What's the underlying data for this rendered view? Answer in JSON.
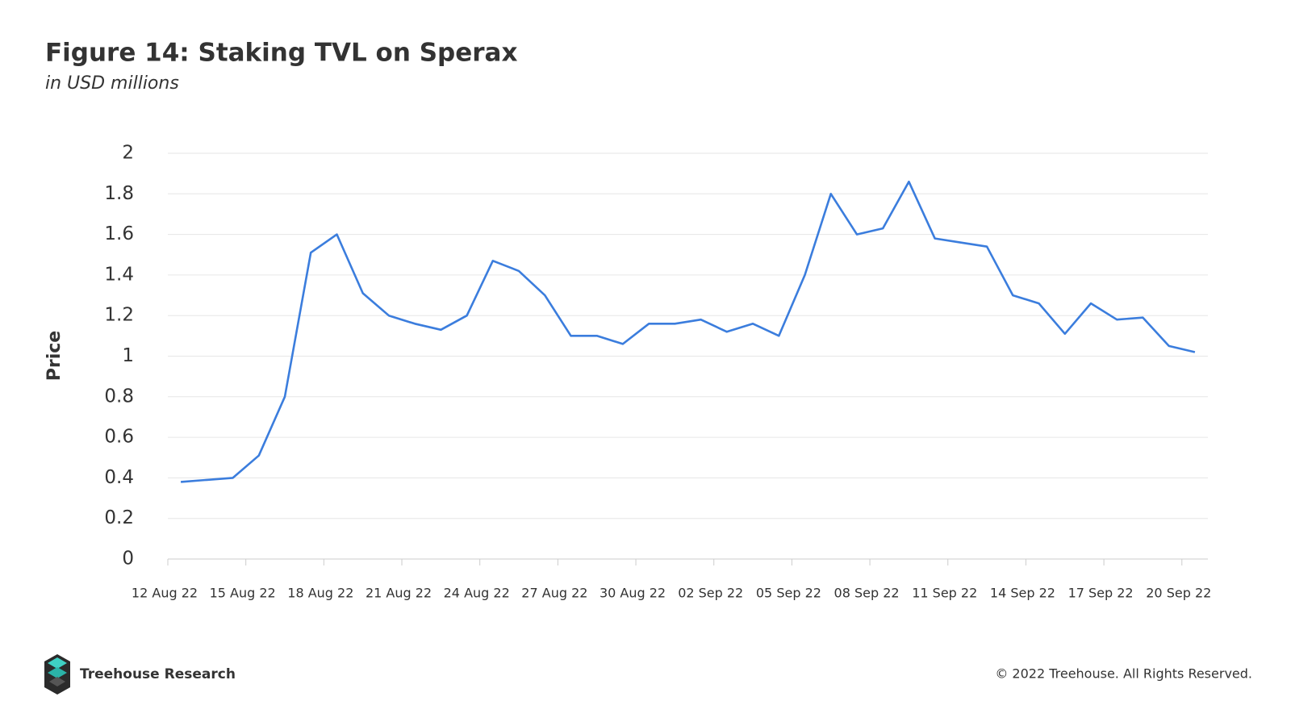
{
  "chart_data": {
    "type": "line",
    "title": "Figure 14: Staking TVL on Sperax",
    "subtitle": "in USD millions",
    "y_label": "Price",
    "x": [
      "2022-08-12",
      "2022-08-13",
      "2022-08-14",
      "2022-08-15",
      "2022-08-16",
      "2022-08-17",
      "2022-08-18",
      "2022-08-19",
      "2022-08-20",
      "2022-08-21",
      "2022-08-22",
      "2022-08-23",
      "2022-08-24",
      "2022-08-25",
      "2022-08-26",
      "2022-08-27",
      "2022-08-28",
      "2022-08-29",
      "2022-08-30",
      "2022-08-31",
      "2022-09-01",
      "2022-09-02",
      "2022-09-03",
      "2022-09-04",
      "2022-09-05",
      "2022-09-06",
      "2022-09-07",
      "2022-09-08",
      "2022-09-09",
      "2022-09-10",
      "2022-09-11",
      "2022-09-12",
      "2022-09-13",
      "2022-09-14",
      "2022-09-15",
      "2022-09-16",
      "2022-09-17",
      "2022-09-18",
      "2022-09-19",
      "2022-09-20"
    ],
    "series": [
      {
        "name": "Staking TVL",
        "color": "#3b7ddd",
        "values": [
          0.38,
          0.39,
          0.4,
          0.51,
          0.8,
          1.51,
          1.6,
          1.31,
          1.2,
          1.16,
          1.13,
          1.2,
          1.47,
          1.42,
          1.3,
          1.1,
          1.1,
          1.06,
          1.16,
          1.16,
          1.18,
          1.12,
          1.16,
          1.1,
          1.4,
          1.8,
          1.6,
          1.63,
          1.86,
          1.58,
          1.56,
          1.54,
          1.3,
          1.26,
          1.11,
          1.26,
          1.18,
          1.19,
          1.05,
          1.02
        ]
      }
    ],
    "xlim": [
      "2022-08-12",
      "2022-09-21"
    ],
    "xticks": [
      {
        "value": "2022-08-12",
        "label": "12 Aug 22"
      },
      {
        "value": "2022-08-15",
        "label": "15 Aug 22"
      },
      {
        "value": "2022-08-18",
        "label": "18 Aug 22"
      },
      {
        "value": "2022-08-21",
        "label": "21 Aug 22"
      },
      {
        "value": "2022-08-24",
        "label": "24 Aug 22"
      },
      {
        "value": "2022-08-27",
        "label": "27 Aug 22"
      },
      {
        "value": "2022-08-30",
        "label": "30 Aug 22"
      },
      {
        "value": "2022-09-02",
        "label": "02 Sep 22"
      },
      {
        "value": "2022-09-05",
        "label": "05 Sep 22"
      },
      {
        "value": "2022-09-08",
        "label": "08 Sep 22"
      },
      {
        "value": "2022-09-11",
        "label": "11 Sep 22"
      },
      {
        "value": "2022-09-14",
        "label": "14 Sep 22"
      },
      {
        "value": "2022-09-17",
        "label": "17 Sep 22"
      },
      {
        "value": "2022-09-20",
        "label": "20 Sep 22"
      }
    ],
    "ylim": [
      0,
      2
    ],
    "yticks": [
      0,
      0.2,
      0.4,
      0.6,
      0.8,
      1,
      1.2,
      1.4,
      1.6,
      1.8,
      2
    ],
    "grid": true
  },
  "footer": {
    "brand": "Treehouse Research",
    "copyright": "© 2022 Treehouse. All Rights Reserved."
  }
}
